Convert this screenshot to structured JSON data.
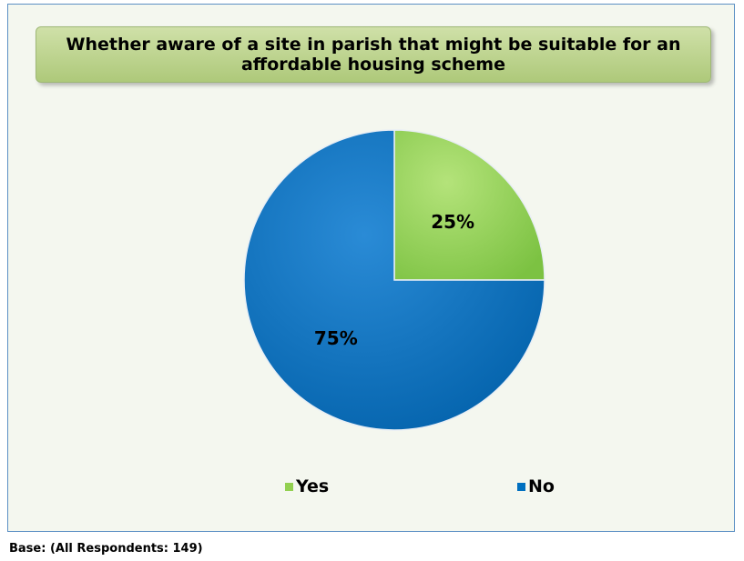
{
  "chart_data": {
    "type": "pie",
    "title": "Whether aware of a site in parish that might be suitable for an affordable housing scheme",
    "categories": [
      "Yes",
      "No"
    ],
    "values": [
      25,
      75
    ],
    "data_labels": [
      "25%",
      "75%"
    ],
    "colors": [
      "#92d050",
      "#0070c0"
    ],
    "legend_position": "bottom",
    "footnote": "Base: (All Respondents: 149)"
  }
}
